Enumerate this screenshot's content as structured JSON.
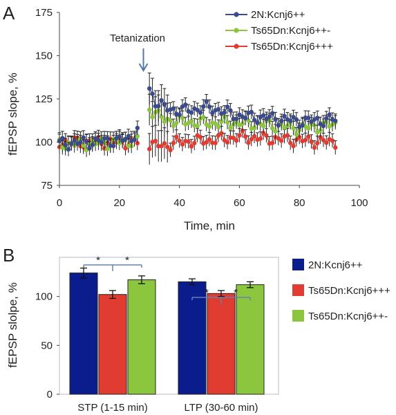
{
  "chart_data": [
    {
      "panel_label": "A",
      "type": "scatter",
      "xlabel": "Time, min",
      "ylabel": "fEPSP slope, %",
      "xlim": [
        0,
        100
      ],
      "ylim": [
        75,
        175
      ],
      "x_ticks": [
        0,
        20,
        40,
        60,
        80,
        100
      ],
      "y_ticks": [
        75,
        100,
        125,
        150,
        175
      ],
      "annotation": {
        "text": "Tetanization",
        "x": 28
      },
      "legend_position": "top-right",
      "series": [
        {
          "name": "2N:Kcnj6++",
          "color": "#3b4a8a",
          "x": [
            0,
            10,
            20,
            24,
            26,
            30,
            31,
            32,
            33,
            35,
            40,
            50,
            60,
            70,
            80,
            92
          ],
          "y": [
            99,
            100,
            101,
            102,
            108,
            130,
            128,
            124,
            122,
            120,
            118,
            120,
            115,
            114,
            112,
            113
          ]
        },
        {
          "name": "Ts65Dn:Kcnj6++-",
          "color": "#8cc63f",
          "x": [
            0,
            10,
            20,
            26,
            30,
            31,
            32,
            33,
            35,
            40,
            50,
            60,
            70,
            80,
            92
          ],
          "y": [
            99,
            99,
            100,
            101,
            120,
            118,
            117,
            115,
            113,
            112,
            111,
            111,
            110,
            108,
            110
          ]
        },
        {
          "name": "Ts65Dn:Kcnj6+++",
          "color": "#e03c31",
          "x": [
            0,
            10,
            20,
            26,
            30,
            32,
            35,
            40,
            50,
            60,
            70,
            80,
            92
          ],
          "y": [
            100,
            100,
            100,
            100,
            99,
            98,
            98,
            100,
            101,
            103,
            102,
            101,
            100
          ]
        }
      ]
    },
    {
      "panel_label": "B",
      "type": "bar",
      "ylabel": "fEPSP slolpe, %",
      "ylim": [
        0,
        140
      ],
      "y_ticks": [
        0,
        50,
        100
      ],
      "categories": [
        "STP (1-15 min)",
        "LTP (30-60 min)"
      ],
      "significance": [
        "*",
        "*",
        "*",
        "*"
      ],
      "legend_position": "right",
      "series": [
        {
          "name": "2N:Kcnj6++",
          "color": "#0b1c8c",
          "values": [
            124,
            115
          ],
          "errors": [
            5,
            3
          ]
        },
        {
          "name": "Ts65Dn:Kcnj6+++",
          "color": "#e03c31",
          "values": [
            102,
            103
          ],
          "errors": [
            4,
            3
          ]
        },
        {
          "name": "Ts65Dn:Kcnj6++-",
          "color": "#8cc63f",
          "values": [
            117,
            112
          ],
          "errors": [
            4,
            3
          ]
        }
      ]
    }
  ]
}
